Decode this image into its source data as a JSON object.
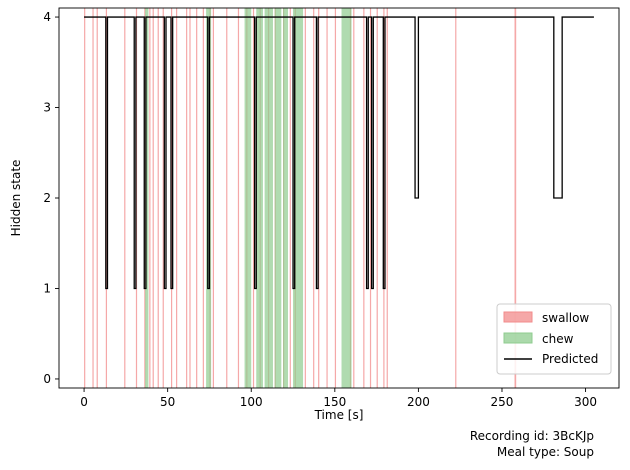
{
  "chart_data": {
    "type": "line",
    "title": "",
    "xlabel": "Time [s]",
    "ylabel": "Hidden state",
    "xlim": [
      -15,
      320
    ],
    "ylim": [
      -0.1,
      4.1
    ],
    "x_ticks": [
      0,
      50,
      100,
      150,
      200,
      250,
      300
    ],
    "y_ticks": [
      0,
      1,
      2,
      3,
      4
    ],
    "grid": false,
    "legend_position": "lower right",
    "legend": [
      {
        "label": "swallow",
        "kind": "patch",
        "color": "#f28b8b"
      },
      {
        "label": "chew",
        "kind": "patch",
        "color": "#8fcc8f"
      },
      {
        "label": "Predicted",
        "kind": "line",
        "color": "#000000"
      }
    ],
    "colors": {
      "swallow": "#f28b8b",
      "chew": "#8fcc8f",
      "predicted": "#000000"
    },
    "swallow_events": [
      [
        0,
        0.6
      ],
      [
        5,
        5.5
      ],
      [
        7.5,
        8
      ],
      [
        13,
        13.6
      ],
      [
        24,
        24.5
      ],
      [
        31,
        31.5
      ],
      [
        36,
        36.5
      ],
      [
        39,
        39.5
      ],
      [
        41,
        41.5
      ],
      [
        44,
        44.5
      ],
      [
        47,
        47.5
      ],
      [
        52,
        52.5
      ],
      [
        55,
        55.5
      ],
      [
        61,
        61.5
      ],
      [
        63,
        63.5
      ],
      [
        67,
        67.5
      ],
      [
        71,
        71.6
      ],
      [
        75,
        75.5
      ],
      [
        77,
        77.5
      ],
      [
        85,
        85.5
      ],
      [
        92,
        92.5
      ],
      [
        97,
        97.5
      ],
      [
        101,
        101.5
      ],
      [
        105,
        105.5
      ],
      [
        110,
        110.5
      ],
      [
        114,
        114.5
      ],
      [
        119,
        119.5
      ],
      [
        123,
        123.5
      ],
      [
        126,
        126.5
      ],
      [
        132,
        132.5
      ],
      [
        137,
        137.5
      ],
      [
        140,
        140.5
      ],
      [
        145,
        145.5
      ],
      [
        150,
        150.5
      ],
      [
        159,
        159.5
      ],
      [
        161,
        161.5
      ],
      [
        167,
        167.5
      ],
      [
        171,
        171.5
      ],
      [
        175,
        175.5
      ],
      [
        179,
        179.6
      ],
      [
        181,
        181.5
      ],
      [
        222,
        222.6
      ],
      [
        257.5,
        258.5
      ]
    ],
    "chew_intervals": [
      [
        36.5,
        38.5
      ],
      [
        73,
        76
      ],
      [
        96,
        100
      ],
      [
        103,
        107
      ],
      [
        108,
        113
      ],
      [
        114,
        118
      ],
      [
        119,
        122
      ],
      [
        125,
        131
      ],
      [
        154,
        160
      ]
    ],
    "series": [
      {
        "name": "Predicted",
        "points": [
          [
            0,
            4
          ],
          [
            13,
            4
          ],
          [
            13,
            1
          ],
          [
            14,
            1
          ],
          [
            14,
            4
          ],
          [
            30,
            4
          ],
          [
            30,
            1
          ],
          [
            31,
            1
          ],
          [
            31,
            4
          ],
          [
            36,
            4
          ],
          [
            36,
            1
          ],
          [
            37,
            1
          ],
          [
            37,
            4
          ],
          [
            48,
            4
          ],
          [
            48,
            1
          ],
          [
            49,
            1
          ],
          [
            49,
            4
          ],
          [
            52,
            4
          ],
          [
            52,
            1
          ],
          [
            53,
            1
          ],
          [
            53,
            4
          ],
          [
            74,
            4
          ],
          [
            74,
            1
          ],
          [
            75,
            1
          ],
          [
            75,
            4
          ],
          [
            102,
            4
          ],
          [
            102,
            1
          ],
          [
            103,
            1
          ],
          [
            103,
            4
          ],
          [
            125,
            4
          ],
          [
            125,
            1
          ],
          [
            126,
            1
          ],
          [
            126,
            4
          ],
          [
            139,
            4
          ],
          [
            139,
            1
          ],
          [
            140,
            1
          ],
          [
            140,
            4
          ],
          [
            169,
            4
          ],
          [
            169,
            1
          ],
          [
            170,
            1
          ],
          [
            170,
            4
          ],
          [
            172,
            4
          ],
          [
            172,
            1
          ],
          [
            173,
            1
          ],
          [
            173,
            4
          ],
          [
            179,
            4
          ],
          [
            179,
            1
          ],
          [
            180,
            1
          ],
          [
            180,
            4
          ],
          [
            198,
            4
          ],
          [
            198,
            2
          ],
          [
            200,
            2
          ],
          [
            200,
            4
          ],
          [
            281,
            4
          ],
          [
            281,
            2
          ],
          [
            286,
            2
          ],
          [
            286,
            4
          ],
          [
            305,
            4
          ]
        ]
      }
    ]
  },
  "footer": {
    "recording_line": "Recording id: 3BcKJp",
    "meal_line": "Meal type: Soup"
  }
}
